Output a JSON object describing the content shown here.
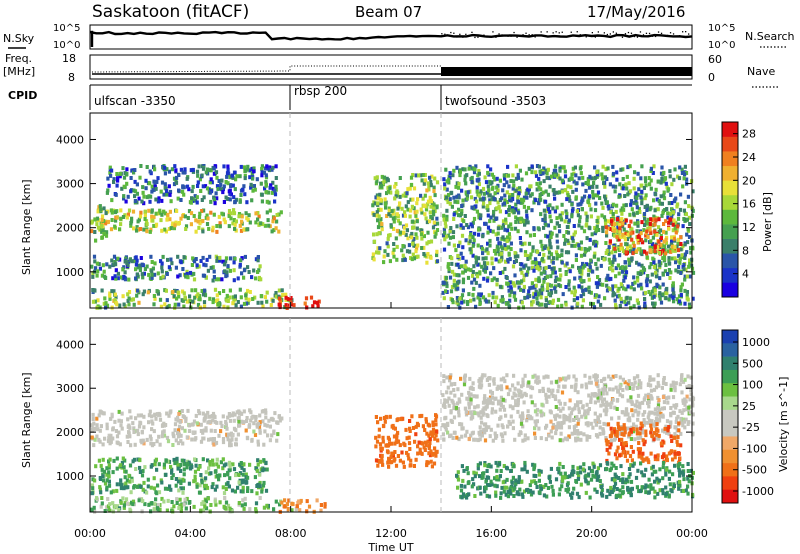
{
  "header": {
    "station": "Saskatoon (fitACF)",
    "beam": "Beam 07",
    "date": "17/May/2016"
  },
  "left_labels": {
    "nsky": "N.Sky",
    "freq_line1": "Freq.",
    "freq_line2": "[MHz]",
    "cpid": "CPID"
  },
  "right_labels": {
    "nsearch": "N.Search",
    "nave": "Nave"
  },
  "noise_panel": {
    "left_ticks": [
      "10^5",
      "10^0"
    ],
    "right_ticks": [
      "10^5",
      "10^0"
    ]
  },
  "freq_panel": {
    "left_ticks": [
      "18",
      "8"
    ],
    "right_ticks": [
      "60",
      "0"
    ]
  },
  "cpid_segments": [
    {
      "label": "ulfscan -3350",
      "start": "00:00"
    },
    {
      "label": "rbsp 200",
      "start": "08:00"
    },
    {
      "label": "twofsound -3503",
      "start": "14:00"
    }
  ],
  "colors": {
    "power_colorbar": [
      "#1a00e0",
      "#1a33c8",
      "#2a55a8",
      "#3a7f6a",
      "#45a050",
      "#5cb83c",
      "#a8d838",
      "#e8e038",
      "#f0b030",
      "#f08020",
      "#e84818",
      "#e01010"
    ],
    "velocity_colorbar": [
      "#1a40b0",
      "#2a62a0",
      "#30806e",
      "#3c9e55",
      "#6cc040",
      "#a8d88c",
      "#c8c8c0",
      "#c8c8c0",
      "#f0a868",
      "#f09030",
      "#f07018",
      "#f04010",
      "#e01010"
    ],
    "velocity_ground": "#c4c4bc",
    "background": "#ffffff"
  },
  "chart_data": [
    {
      "type": "heatmap",
      "title": "Power",
      "ylabel": "Slant Range [km]",
      "xlabel": "",
      "x_ticks": [
        "00:00",
        "04:00",
        "08:00",
        "12:00",
        "16:00",
        "20:00",
        "00:00"
      ],
      "y_ticks": [
        "1000",
        "2000",
        "3000",
        "4000"
      ],
      "xlim_hours": [
        0,
        24
      ],
      "ylim_km": [
        180,
        4600
      ],
      "colorbar": {
        "label": "Power [dB]",
        "ticks": [
          "4",
          "8",
          "12",
          "16",
          "20",
          "24",
          "28"
        ],
        "range": [
          0,
          30
        ]
      },
      "scatter_regions": [
        {
          "t0": 0.0,
          "t1": 7.6,
          "r0": 1900,
          "r1": 2400,
          "intensity": 0.55,
          "note": "arc band"
        },
        {
          "t0": 0.0,
          "t1": 0.6,
          "r0": 1700,
          "r1": 2500,
          "intensity": 0.5
        },
        {
          "t0": 0.6,
          "t1": 7.4,
          "r0": 2550,
          "r1": 3400,
          "intensity": 0.25
        },
        {
          "t0": 0.0,
          "t1": 6.8,
          "r0": 800,
          "r1": 1350,
          "intensity": 0.3
        },
        {
          "t0": 0.0,
          "t1": 8.0,
          "r0": 180,
          "r1": 600,
          "intensity": 0.45
        },
        {
          "t0": 7.4,
          "t1": 9.2,
          "r0": 180,
          "r1": 420,
          "intensity": 0.95
        },
        {
          "t0": 11.2,
          "t1": 13.8,
          "r0": 1200,
          "r1": 3200,
          "intensity": 0.45
        },
        {
          "t0": 14.0,
          "t1": 24.0,
          "r0": 180,
          "r1": 3400,
          "intensity": 0.35
        },
        {
          "t0": 20.5,
          "t1": 23.5,
          "r0": 1400,
          "r1": 2200,
          "intensity": 0.8
        }
      ]
    },
    {
      "type": "heatmap",
      "title": "Velocity",
      "ylabel": "Slant Range [km]",
      "xlabel": "Time UT",
      "x_ticks": [
        "00:00",
        "04:00",
        "08:00",
        "12:00",
        "16:00",
        "20:00",
        "00:00"
      ],
      "y_ticks": [
        "1000",
        "2000",
        "3000",
        "4000"
      ],
      "xlim_hours": [
        0,
        24
      ],
      "ylim_km": [
        180,
        4600
      ],
      "colorbar": {
        "label": "Velocity [m s^-1]",
        "ticks": [
          "1000",
          "500",
          "100",
          "25",
          "-25",
          "-100",
          "-500",
          "-1000"
        ]
      },
      "scatter_regions": [
        {
          "t0": 0.0,
          "t1": 7.6,
          "r0": 1700,
          "r1": 2500,
          "velocity": 0,
          "note": "ground scatter (grey)"
        },
        {
          "t0": 0.0,
          "t1": 7.0,
          "r0": 600,
          "r1": 1400,
          "velocity": 150
        },
        {
          "t0": 0.0,
          "t1": 8.0,
          "r0": 180,
          "r1": 500,
          "velocity": 100
        },
        {
          "t0": 7.4,
          "t1": 9.4,
          "r0": 180,
          "r1": 450,
          "velocity": -120
        },
        {
          "t0": 11.3,
          "t1": 13.8,
          "r0": 1200,
          "r1": 2400,
          "velocity": -300
        },
        {
          "t0": 14.0,
          "t1": 24.0,
          "r0": 1800,
          "r1": 3300,
          "velocity": 0
        },
        {
          "t0": 20.5,
          "t1": 23.5,
          "r0": 1300,
          "r1": 2200,
          "velocity": -350
        },
        {
          "t0": 14.5,
          "t1": 24.0,
          "r0": 500,
          "r1": 1300,
          "velocity": 200
        }
      ]
    }
  ]
}
